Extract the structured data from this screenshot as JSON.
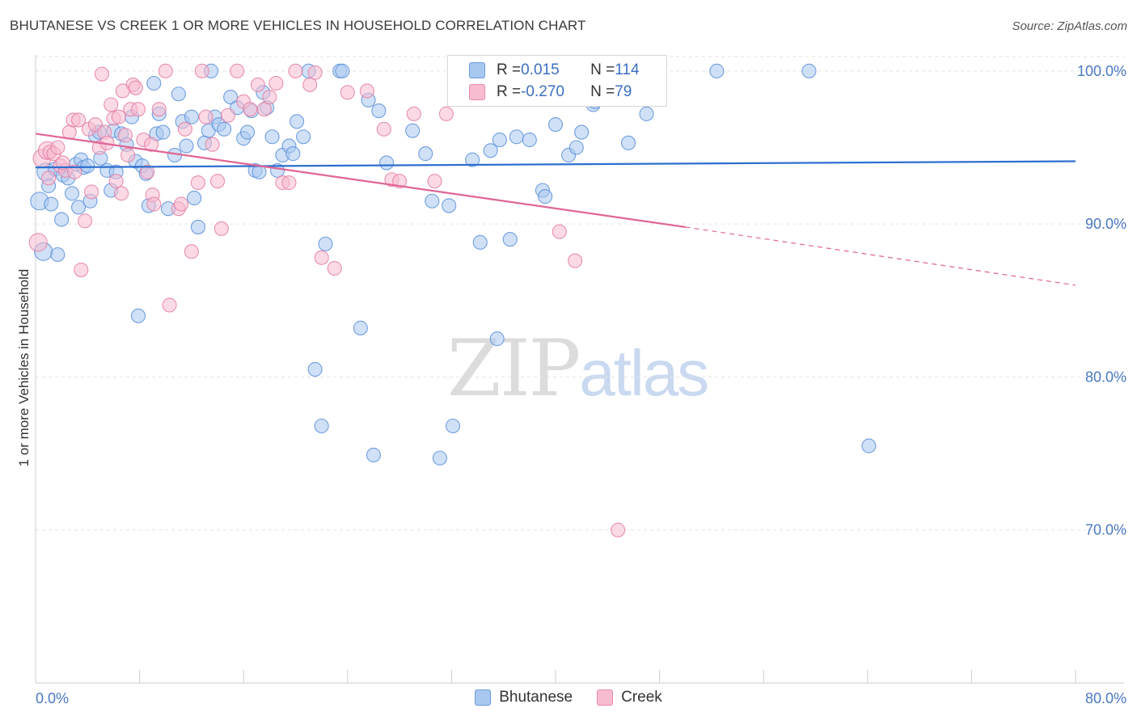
{
  "title": "BHUTANESE VS CREEK 1 OR MORE VEHICLES IN HOUSEHOLD CORRELATION CHART",
  "source": "Source: ZipAtlas.com",
  "watermark": {
    "zip": "ZIP",
    "atlas": "atlas"
  },
  "legend_top": [
    {
      "r_label": "R = ",
      "r_value": "0.015",
      "n_label": "N = ",
      "n_value": "114",
      "color": "#a9c8f0",
      "stroke": "#6b9be0"
    },
    {
      "r_label": "R = ",
      "r_value": "-0.270",
      "n_label": "N = ",
      "n_value": "79",
      "color": "#f7bcd0",
      "stroke": "#e889ab"
    }
  ],
  "chart_data": {
    "type": "scatter",
    "title": "BHUTANESE VS CREEK 1 OR MORE VEHICLES IN HOUSEHOLD CORRELATION CHART",
    "xlabel": "",
    "ylabel": "1 or more Vehicles in Household",
    "xlim": [
      0,
      80
    ],
    "ylim": [
      60,
      102
    ],
    "x_tick_labels": [
      "0.0%",
      "80.0%"
    ],
    "y_ticks": [
      70,
      80,
      90,
      100
    ],
    "y_tick_labels": [
      "70.0%",
      "80.0%",
      "90.0%",
      "100.0%"
    ],
    "grid": true,
    "legend_position": "bottom",
    "series": [
      {
        "name": "Bhutanese",
        "color": "#a9c8f0",
        "stroke": "#5b8fd9",
        "trend": {
          "x0": 0,
          "y0": 93.7,
          "x1": 80,
          "y1": 94.1,
          "color": "#2e6fd0"
        },
        "points": [
          [
            0.3,
            91.5
          ],
          [
            0.6,
            88.2
          ],
          [
            0.8,
            93.4
          ],
          [
            1.0,
            92.5
          ],
          [
            1.2,
            91.3
          ],
          [
            1.5,
            93.6
          ],
          [
            1.7,
            88.0
          ],
          [
            2.0,
            90.3
          ],
          [
            2.1,
            93.2
          ],
          [
            2.5,
            93.0
          ],
          [
            2.8,
            92.0
          ],
          [
            3.1,
            93.9
          ],
          [
            3.3,
            91.1
          ],
          [
            3.5,
            94.2
          ],
          [
            3.7,
            93.7
          ],
          [
            4.0,
            93.8
          ],
          [
            4.2,
            91.5
          ],
          [
            4.6,
            95.8
          ],
          [
            4.9,
            96.0
          ],
          [
            5.0,
            94.3
          ],
          [
            5.5,
            93.5
          ],
          [
            5.8,
            92.2
          ],
          [
            6.0,
            96.1
          ],
          [
            6.2,
            93.4
          ],
          [
            6.6,
            95.9
          ],
          [
            7.0,
            95.2
          ],
          [
            7.4,
            97.0
          ],
          [
            7.7,
            94.1
          ],
          [
            7.9,
            84.0
          ],
          [
            8.2,
            93.8
          ],
          [
            8.5,
            93.3
          ],
          [
            8.7,
            91.2
          ],
          [
            9.1,
            99.2
          ],
          [
            9.3,
            95.9
          ],
          [
            9.5,
            97.2
          ],
          [
            9.8,
            96.0
          ],
          [
            10.2,
            91.0
          ],
          [
            10.7,
            94.5
          ],
          [
            11.0,
            98.5
          ],
          [
            11.3,
            96.7
          ],
          [
            11.6,
            95.1
          ],
          [
            12.0,
            97.0
          ],
          [
            12.2,
            91.7
          ],
          [
            12.5,
            89.8
          ],
          [
            13.0,
            95.3
          ],
          [
            13.3,
            96.1
          ],
          [
            13.5,
            100.0
          ],
          [
            13.8,
            97.0
          ],
          [
            14.1,
            96.5
          ],
          [
            14.5,
            96.2
          ],
          [
            15.0,
            98.3
          ],
          [
            15.5,
            97.6
          ],
          [
            16.0,
            95.6
          ],
          [
            16.3,
            96.0
          ],
          [
            16.6,
            97.4
          ],
          [
            16.9,
            93.5
          ],
          [
            17.2,
            93.4
          ],
          [
            17.5,
            98.6
          ],
          [
            17.8,
            97.6
          ],
          [
            18.2,
            95.7
          ],
          [
            18.6,
            93.5
          ],
          [
            19.0,
            94.5
          ],
          [
            19.5,
            95.1
          ],
          [
            19.8,
            94.6
          ],
          [
            20.1,
            96.7
          ],
          [
            20.6,
            95.7
          ],
          [
            21.0,
            100.0
          ],
          [
            21.5,
            80.5
          ],
          [
            22.0,
            76.8
          ],
          [
            22.3,
            88.7
          ],
          [
            23.4,
            100.0
          ],
          [
            23.6,
            100.0
          ],
          [
            25.0,
            83.2
          ],
          [
            26.0,
            74.9
          ],
          [
            25.6,
            98.1
          ],
          [
            26.4,
            97.4
          ],
          [
            27.0,
            94.0
          ],
          [
            29.0,
            96.1
          ],
          [
            30.0,
            94.6
          ],
          [
            30.5,
            91.5
          ],
          [
            31.1,
            74.7
          ],
          [
            31.8,
            91.2
          ],
          [
            32.1,
            76.8
          ],
          [
            33.6,
            94.2
          ],
          [
            34.2,
            88.8
          ],
          [
            35.0,
            94.8
          ],
          [
            35.5,
            82.5
          ],
          [
            35.7,
            95.5
          ],
          [
            36.5,
            89.0
          ],
          [
            37.0,
            95.7
          ],
          [
            38.0,
            95.5
          ],
          [
            39.0,
            92.2
          ],
          [
            39.2,
            91.8
          ],
          [
            40.0,
            96.5
          ],
          [
            41.0,
            94.5
          ],
          [
            41.6,
            95.0
          ],
          [
            42.0,
            96.0
          ],
          [
            42.5,
            99.9
          ],
          [
            42.9,
            97.8
          ],
          [
            43.3,
            99.8
          ],
          [
            44.5,
            100.0
          ],
          [
            45.2,
            100.0
          ],
          [
            45.6,
            95.3
          ],
          [
            46.0,
            100.0
          ],
          [
            46.5,
            100.0
          ],
          [
            47.0,
            97.2
          ],
          [
            52.4,
            100.0
          ],
          [
            59.5,
            100.0
          ],
          [
            64.1,
            75.5
          ],
          [
            43.0,
            98.0
          ]
        ]
      },
      {
        "name": "Creek",
        "color": "#f7bcd0",
        "stroke": "#e47ea5",
        "trend": {
          "x0": 0,
          "y0": 95.9,
          "x1": 50,
          "y1": 89.8,
          "color": "#e06595",
          "dash_to": {
            "x": 80,
            "y": 86.0
          }
        },
        "points": [
          [
            0.2,
            88.8
          ],
          [
            0.5,
            94.3
          ],
          [
            0.9,
            94.8
          ],
          [
            1.1,
            94.7
          ],
          [
            1.4,
            94.6
          ],
          [
            1.7,
            95.0
          ],
          [
            1.9,
            93.8
          ],
          [
            2.3,
            93.5
          ],
          [
            2.6,
            96.0
          ],
          [
            2.9,
            96.8
          ],
          [
            3.0,
            93.4
          ],
          [
            3.3,
            96.8
          ],
          [
            3.5,
            87.0
          ],
          [
            3.8,
            90.2
          ],
          [
            4.1,
            96.2
          ],
          [
            4.3,
            92.1
          ],
          [
            4.6,
            96.5
          ],
          [
            4.9,
            95.0
          ],
          [
            5.1,
            99.8
          ],
          [
            5.3,
            96.0
          ],
          [
            5.5,
            95.3
          ],
          [
            5.8,
            97.8
          ],
          [
            6.0,
            96.9
          ],
          [
            6.2,
            92.8
          ],
          [
            6.4,
            97.0
          ],
          [
            6.6,
            92.0
          ],
          [
            6.9,
            95.8
          ],
          [
            7.1,
            94.5
          ],
          [
            7.3,
            97.5
          ],
          [
            7.5,
            99.1
          ],
          [
            7.7,
            98.9
          ],
          [
            7.9,
            97.5
          ],
          [
            8.3,
            95.5
          ],
          [
            8.6,
            93.4
          ],
          [
            8.9,
            95.2
          ],
          [
            9.0,
            91.9
          ],
          [
            9.1,
            91.3
          ],
          [
            9.5,
            97.5
          ],
          [
            10.0,
            100.0
          ],
          [
            10.3,
            84.7
          ],
          [
            11.0,
            91.0
          ],
          [
            11.2,
            91.3
          ],
          [
            11.5,
            96.2
          ],
          [
            12.0,
            88.2
          ],
          [
            12.5,
            92.7
          ],
          [
            12.8,
            100.0
          ],
          [
            13.1,
            97.0
          ],
          [
            13.6,
            95.2
          ],
          [
            14.0,
            92.8
          ],
          [
            14.3,
            89.7
          ],
          [
            14.8,
            97.1
          ],
          [
            15.5,
            100.0
          ],
          [
            16.0,
            98.0
          ],
          [
            16.5,
            97.5
          ],
          [
            17.1,
            99.1
          ],
          [
            17.6,
            97.5
          ],
          [
            18.0,
            98.3
          ],
          [
            18.5,
            99.2
          ],
          [
            19.0,
            92.7
          ],
          [
            19.5,
            92.7
          ],
          [
            20.0,
            100.0
          ],
          [
            21.1,
            99.1
          ],
          [
            21.5,
            99.9
          ],
          [
            22.0,
            87.8
          ],
          [
            23.0,
            87.1
          ],
          [
            24.0,
            98.6
          ],
          [
            25.5,
            98.7
          ],
          [
            26.8,
            96.2
          ],
          [
            27.4,
            92.9
          ],
          [
            28.0,
            92.8
          ],
          [
            29.1,
            97.2
          ],
          [
            30.7,
            92.8
          ],
          [
            31.6,
            97.2
          ],
          [
            40.3,
            89.5
          ],
          [
            41.5,
            87.6
          ],
          [
            44.8,
            70.0
          ],
          [
            6.7,
            98.7
          ],
          [
            2.1,
            94.0
          ],
          [
            1.0,
            93.0
          ]
        ]
      }
    ]
  }
}
